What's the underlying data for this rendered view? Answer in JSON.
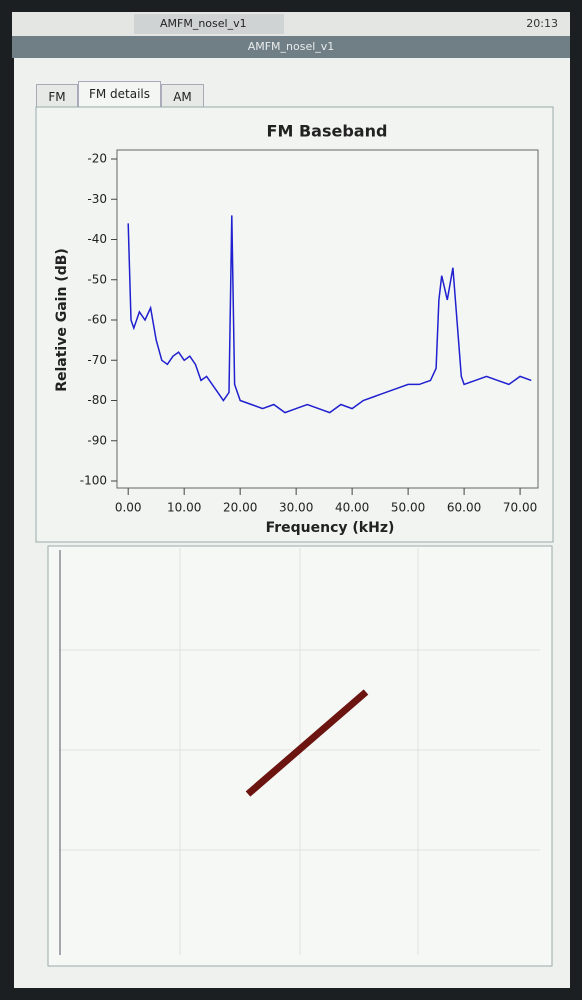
{
  "taskbar": {
    "window_button": "AMFM_nosel_v1",
    "clock": "20:13"
  },
  "window": {
    "title": "AMFM_nosel_v1"
  },
  "tabs": [
    "FM",
    "FM details",
    "AM"
  ],
  "chart_data": {
    "type": "line",
    "title": "FM Baseband",
    "x_label": "Frequency (kHz)",
    "y_label": "Relative Gain (dB)",
    "color": "#2020d0",
    "x": [
      0,
      0.5,
      1,
      2,
      3,
      4,
      5,
      6,
      7,
      8,
      9,
      10,
      11,
      12,
      13,
      14,
      15,
      16,
      17,
      18,
      18.5,
      19,
      20,
      22,
      24,
      26,
      28,
      30,
      32,
      34,
      36,
      38,
      40,
      42,
      44,
      46,
      48,
      50,
      52,
      54,
      55,
      55.5,
      56,
      57,
      58,
      59,
      59.5,
      60,
      62,
      64,
      66,
      68,
      70,
      72
    ],
    "values": [
      -36,
      -60,
      -62,
      -58,
      -60,
      -57,
      -65,
      -70,
      -71,
      -69,
      -68,
      -70,
      -69,
      -71,
      -75,
      -74,
      -76,
      -78,
      -80,
      -78,
      -34,
      -76,
      -80,
      -81,
      -82,
      -81,
      -83,
      -82,
      -81,
      -82,
      -83,
      -81,
      -82,
      -80,
      -79,
      -78,
      -77,
      -76,
      -76,
      -75,
      -72,
      -55,
      -49,
      -55,
      -47,
      -65,
      -74,
      -76,
      -75,
      -74,
      -75,
      -76,
      -74,
      -75
    ],
    "xlim": [
      -2,
      73.2
    ],
    "ylim": [
      -100,
      -20
    ],
    "xticks": [
      {
        "value": 0,
        "label": "0.00"
      },
      {
        "value": 10,
        "label": "10.00"
      },
      {
        "value": 20,
        "label": "20.00"
      },
      {
        "value": 30,
        "label": "30.00"
      },
      {
        "value": 40,
        "label": "40.00"
      },
      {
        "value": 50,
        "label": "50.00"
      },
      {
        "value": 60,
        "label": "60.00"
      },
      {
        "value": 70,
        "label": "70.00"
      }
    ],
    "yticks": [
      -20,
      -30,
      -40,
      -50,
      -60,
      -70,
      -80,
      -90,
      -100
    ]
  }
}
